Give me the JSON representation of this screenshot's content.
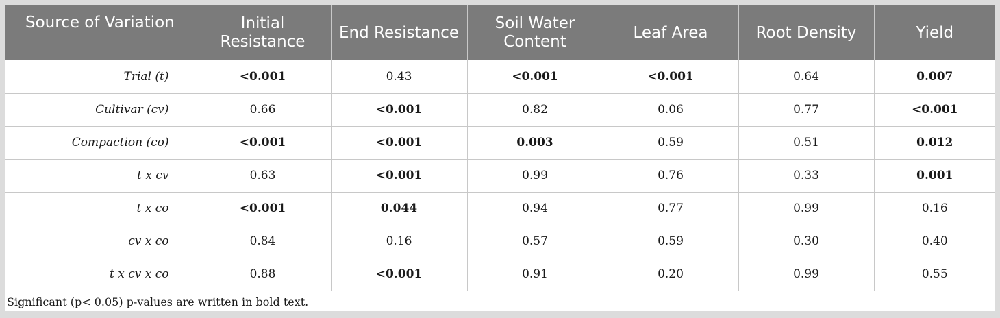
{
  "table": {
    "headers": [
      "Source of Variation",
      "Initial Resistance",
      "End Resistance",
      "Soil Water Content",
      "Leaf Area",
      "Root Density",
      "Yield"
    ],
    "rows": [
      {
        "source": "Trial (t)",
        "values": [
          "<0.001",
          "0.43",
          "<0.001",
          "<0.001",
          "0.64",
          "0.007"
        ],
        "significant": [
          true,
          false,
          true,
          true,
          false,
          true
        ]
      },
      {
        "source": "Cultivar (cv)",
        "values": [
          "0.66",
          "<0.001",
          "0.82",
          "0.06",
          "0.77",
          "<0.001"
        ],
        "significant": [
          false,
          true,
          false,
          false,
          false,
          true
        ]
      },
      {
        "source": "Compaction (co)",
        "values": [
          "<0.001",
          "<0.001",
          "0.003",
          "0.59",
          "0.51",
          "0.012"
        ],
        "significant": [
          true,
          true,
          true,
          false,
          false,
          true
        ]
      },
      {
        "source": "t x cv",
        "values": [
          "0.63",
          "<0.001",
          "0.99",
          "0.76",
          "0.33",
          "0.001"
        ],
        "significant": [
          false,
          true,
          false,
          false,
          false,
          true
        ]
      },
      {
        "source": "t x co",
        "values": [
          "<0.001",
          "0.044",
          "0.94",
          "0.77",
          "0.99",
          "0.16"
        ],
        "significant": [
          true,
          true,
          false,
          false,
          false,
          false
        ]
      },
      {
        "source": "cv x co",
        "values": [
          "0.84",
          "0.16",
          "0.57",
          "0.59",
          "0.30",
          "0.40"
        ],
        "significant": [
          false,
          false,
          false,
          false,
          false,
          false
        ]
      },
      {
        "source": "t x cv x co",
        "values": [
          "0.88",
          "<0.001",
          "0.91",
          "0.20",
          "0.99",
          "0.55"
        ],
        "significant": [
          false,
          true,
          false,
          false,
          false,
          false
        ]
      }
    ],
    "footnote": "Significant (p< 0.05) p-values are written in bold text."
  },
  "colors": {
    "header_bg": "#7b7b7b",
    "header_text": "#ffffff",
    "page_bg": "#dcdcdc",
    "cell_bg": "#ffffff",
    "grid_line": "#c8c8c8"
  }
}
